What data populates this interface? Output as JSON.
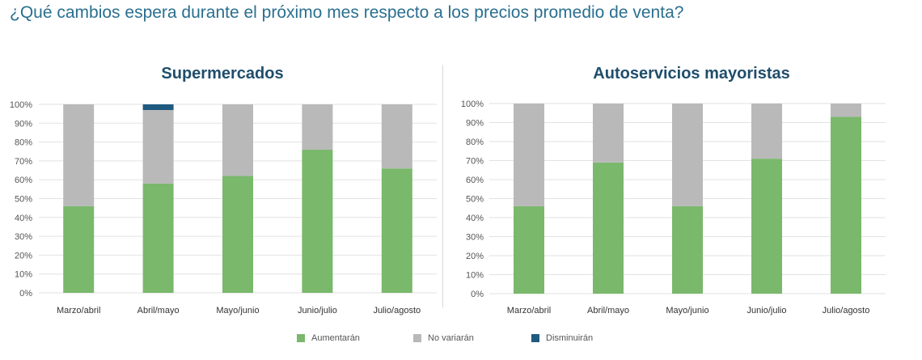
{
  "question": "¿Qué cambios espera durante el próximo mes respecto a los precios promedio de venta?",
  "colors": {
    "aumentaran": "#7ab86c",
    "no_variaran": "#b9b9b9",
    "disminuiran": "#1f5a80",
    "grid": "#e2e2e2"
  },
  "legend": [
    {
      "label": "Aumentarán",
      "color": "#7ab86c"
    },
    {
      "label": "No variarán",
      "color": "#b9b9b9"
    },
    {
      "label": "Disminuirán",
      "color": "#1f5a80"
    }
  ],
  "chart_data": [
    {
      "type": "bar",
      "stacked": true,
      "title": "Supermercados",
      "categories": [
        "Marzo/abril",
        "Abril/mayo",
        "Mayo/junio",
        "Junio/julio",
        "Julio/agosto"
      ],
      "series": [
        {
          "name": "Aumentarán",
          "values": [
            46,
            58,
            62,
            76,
            66
          ]
        },
        {
          "name": "No variarán",
          "values": [
            54,
            39,
            38,
            24,
            34
          ]
        },
        {
          "name": "Disminuirán",
          "values": [
            0,
            3,
            0,
            0,
            0
          ]
        }
      ],
      "ylim": [
        0,
        100
      ],
      "yticks": [
        "0%",
        "10%",
        "20%",
        "30%",
        "40%",
        "50%",
        "60%",
        "70%",
        "80%",
        "90%",
        "100%"
      ],
      "grid": true
    },
    {
      "type": "bar",
      "stacked": true,
      "title": "Autoservicios mayoristas",
      "categories": [
        "Marzo/abril",
        "Abril/mayo",
        "Mayo/junio",
        "Junio/julio",
        "Julio/agosto"
      ],
      "series": [
        {
          "name": "Aumentarán",
          "values": [
            46,
            69,
            46,
            71,
            93
          ]
        },
        {
          "name": "No variarán",
          "values": [
            54,
            31,
            54,
            29,
            7
          ]
        },
        {
          "name": "Disminuirán",
          "values": [
            0,
            0,
            0,
            0,
            0
          ]
        }
      ],
      "ylim": [
        0,
        100
      ],
      "yticks": [
        "0%",
        "10%",
        "20%",
        "30%",
        "40%",
        "50%",
        "60%",
        "70%",
        "80%",
        "90%",
        "100%"
      ],
      "grid": true
    }
  ]
}
